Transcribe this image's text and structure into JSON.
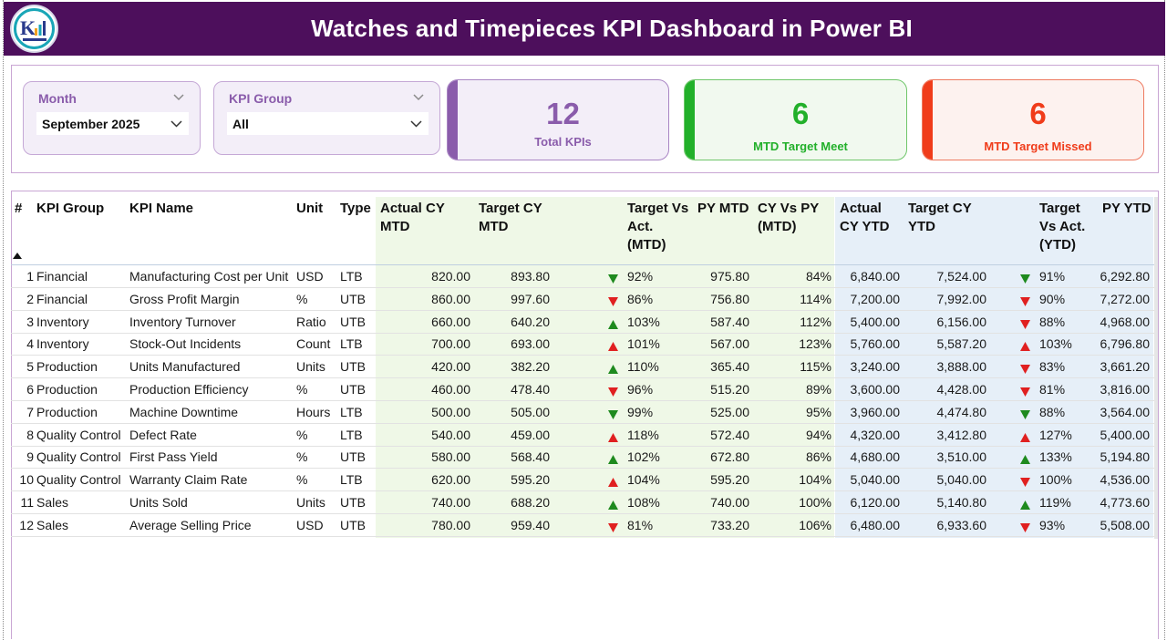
{
  "header": {
    "title": "Watches and Timepieces KPI Dashboard in Power BI"
  },
  "logo": {
    "icon": "company-logo-icon",
    "colors": {
      "ring": "#1aa6b7",
      "bars": "#f0a020",
      "text": "#2a3a8c"
    }
  },
  "slicers": {
    "month": {
      "label": "Month",
      "value": "September 2025"
    },
    "kpi_group": {
      "label": "KPI Group",
      "value": "All"
    }
  },
  "cards": {
    "total": {
      "value": "12",
      "label": "Total KPIs",
      "color": "#8a5cab"
    },
    "meet": {
      "value": "6",
      "label": "MTD Target Meet",
      "color": "#22b02a"
    },
    "missed": {
      "value": "6",
      "label": "MTD Target Missed",
      "color": "#f03c1a"
    }
  },
  "table": {
    "headers": {
      "num": "#",
      "group": "KPI Group",
      "name": "KPI Name",
      "unit": "Unit",
      "type": "Type",
      "actual_mtd": [
        "Actual CY",
        "MTD"
      ],
      "target_mtd": [
        "Target CY",
        "MTD"
      ],
      "tva_mtd": [
        "Target Vs",
        "Act.",
        "(MTD)"
      ],
      "py_mtd": [
        "PY MTD"
      ],
      "cyvspy_mtd": [
        "CY Vs PY",
        "(MTD)"
      ],
      "actual_ytd": [
        "Actual",
        "CY YTD"
      ],
      "target_ytd": [
        "Target CY",
        "YTD"
      ],
      "tva_ytd": [
        "Target",
        "Vs Act.",
        "(YTD)"
      ],
      "py_ytd": [
        "PY YTD"
      ]
    },
    "indicator_colors": {
      "up": "#1e8a1e",
      "down": "#e02020",
      "up_red": "#e02020",
      "down_green": "#1e8a1e"
    },
    "rows": [
      {
        "num": "1",
        "group": "Financial",
        "name": "Manufacturing Cost per Unit",
        "unit": "USD",
        "type": "LTB",
        "actual_mtd": "820.00",
        "target_mtd": "893.80",
        "mtd_icon": "down-green",
        "tva_mtd": "92%",
        "py_mtd": "975.80",
        "cyvspy_mtd": "84%",
        "actual_ytd": "6,840.00",
        "target_ytd": "7,524.00",
        "ytd_icon": "down-green",
        "tva_ytd": "91%",
        "py_ytd": "6,292.80"
      },
      {
        "num": "2",
        "group": "Financial",
        "name": "Gross Profit Margin",
        "unit": "%",
        "type": "UTB",
        "actual_mtd": "860.00",
        "target_mtd": "997.60",
        "mtd_icon": "down-red",
        "tva_mtd": "86%",
        "py_mtd": "756.80",
        "cyvspy_mtd": "114%",
        "actual_ytd": "7,200.00",
        "target_ytd": "7,992.00",
        "ytd_icon": "down-red",
        "tva_ytd": "90%",
        "py_ytd": "7,272.00"
      },
      {
        "num": "3",
        "group": "Inventory",
        "name": "Inventory Turnover",
        "unit": "Ratio",
        "type": "UTB",
        "actual_mtd": "660.00",
        "target_mtd": "640.20",
        "mtd_icon": "up-green",
        "tva_mtd": "103%",
        "py_mtd": "587.40",
        "cyvspy_mtd": "112%",
        "actual_ytd": "5,400.00",
        "target_ytd": "6,156.00",
        "ytd_icon": "down-red",
        "tva_ytd": "88%",
        "py_ytd": "4,968.00"
      },
      {
        "num": "4",
        "group": "Inventory",
        "name": "Stock-Out Incidents",
        "unit": "Count",
        "type": "LTB",
        "actual_mtd": "700.00",
        "target_mtd": "693.00",
        "mtd_icon": "up-red",
        "tva_mtd": "101%",
        "py_mtd": "567.00",
        "cyvspy_mtd": "123%",
        "actual_ytd": "5,760.00",
        "target_ytd": "5,587.20",
        "ytd_icon": "up-red",
        "tva_ytd": "103%",
        "py_ytd": "6,796.80"
      },
      {
        "num": "5",
        "group": "Production",
        "name": "Units Manufactured",
        "unit": "Units",
        "type": "UTB",
        "actual_mtd": "420.00",
        "target_mtd": "382.20",
        "mtd_icon": "up-green",
        "tva_mtd": "110%",
        "py_mtd": "365.40",
        "cyvspy_mtd": "115%",
        "actual_ytd": "3,240.00",
        "target_ytd": "3,888.00",
        "ytd_icon": "down-red",
        "tva_ytd": "83%",
        "py_ytd": "3,661.20"
      },
      {
        "num": "6",
        "group": "Production",
        "name": "Production Efficiency",
        "unit": "%",
        "type": "UTB",
        "actual_mtd": "460.00",
        "target_mtd": "478.40",
        "mtd_icon": "down-red",
        "tva_mtd": "96%",
        "py_mtd": "515.20",
        "cyvspy_mtd": "89%",
        "actual_ytd": "3,600.00",
        "target_ytd": "4,428.00",
        "ytd_icon": "down-red",
        "tva_ytd": "81%",
        "py_ytd": "3,816.00"
      },
      {
        "num": "7",
        "group": "Production",
        "name": "Machine Downtime",
        "unit": "Hours",
        "type": "LTB",
        "actual_mtd": "500.00",
        "target_mtd": "505.00",
        "mtd_icon": "down-green",
        "tva_mtd": "99%",
        "py_mtd": "525.00",
        "cyvspy_mtd": "95%",
        "actual_ytd": "3,960.00",
        "target_ytd": "4,474.80",
        "ytd_icon": "down-green",
        "tva_ytd": "88%",
        "py_ytd": "3,564.00"
      },
      {
        "num": "8",
        "group": "Quality Control",
        "name": "Defect Rate",
        "unit": "%",
        "type": "LTB",
        "actual_mtd": "540.00",
        "target_mtd": "459.00",
        "mtd_icon": "up-red",
        "tva_mtd": "118%",
        "py_mtd": "572.40",
        "cyvspy_mtd": "94%",
        "actual_ytd": "4,320.00",
        "target_ytd": "3,412.80",
        "ytd_icon": "up-red",
        "tva_ytd": "127%",
        "py_ytd": "5,400.00"
      },
      {
        "num": "9",
        "group": "Quality Control",
        "name": "First Pass Yield",
        "unit": "%",
        "type": "UTB",
        "actual_mtd": "580.00",
        "target_mtd": "568.40",
        "mtd_icon": "up-green",
        "tva_mtd": "102%",
        "py_mtd": "672.80",
        "cyvspy_mtd": "86%",
        "actual_ytd": "4,680.00",
        "target_ytd": "3,510.00",
        "ytd_icon": "up-green",
        "tva_ytd": "133%",
        "py_ytd": "5,194.80"
      },
      {
        "num": "10",
        "group": "Quality Control",
        "name": "Warranty Claim Rate",
        "unit": "%",
        "type": "LTB",
        "actual_mtd": "620.00",
        "target_mtd": "595.20",
        "mtd_icon": "up-red",
        "tva_mtd": "104%",
        "py_mtd": "595.20",
        "cyvspy_mtd": "104%",
        "actual_ytd": "5,040.00",
        "target_ytd": "5,040.00",
        "ytd_icon": "down-red",
        "tva_ytd": "100%",
        "py_ytd": "4,536.00"
      },
      {
        "num": "11",
        "group": "Sales",
        "name": "Units Sold",
        "unit": "Units",
        "type": "UTB",
        "actual_mtd": "740.00",
        "target_mtd": "688.20",
        "mtd_icon": "up-green",
        "tva_mtd": "108%",
        "py_mtd": "740.00",
        "cyvspy_mtd": "100%",
        "actual_ytd": "6,120.00",
        "target_ytd": "5,140.80",
        "ytd_icon": "up-green",
        "tva_ytd": "119%",
        "py_ytd": "4,773.60"
      },
      {
        "num": "12",
        "group": "Sales",
        "name": "Average Selling Price",
        "unit": "USD",
        "type": "UTB",
        "actual_mtd": "780.00",
        "target_mtd": "959.40",
        "mtd_icon": "down-red",
        "tva_mtd": "81%",
        "py_mtd": "733.20",
        "cyvspy_mtd": "106%",
        "actual_ytd": "6,480.00",
        "target_ytd": "6,933.60",
        "ytd_icon": "down-red",
        "tva_ytd": "93%",
        "py_ytd": "5,508.00"
      }
    ]
  }
}
